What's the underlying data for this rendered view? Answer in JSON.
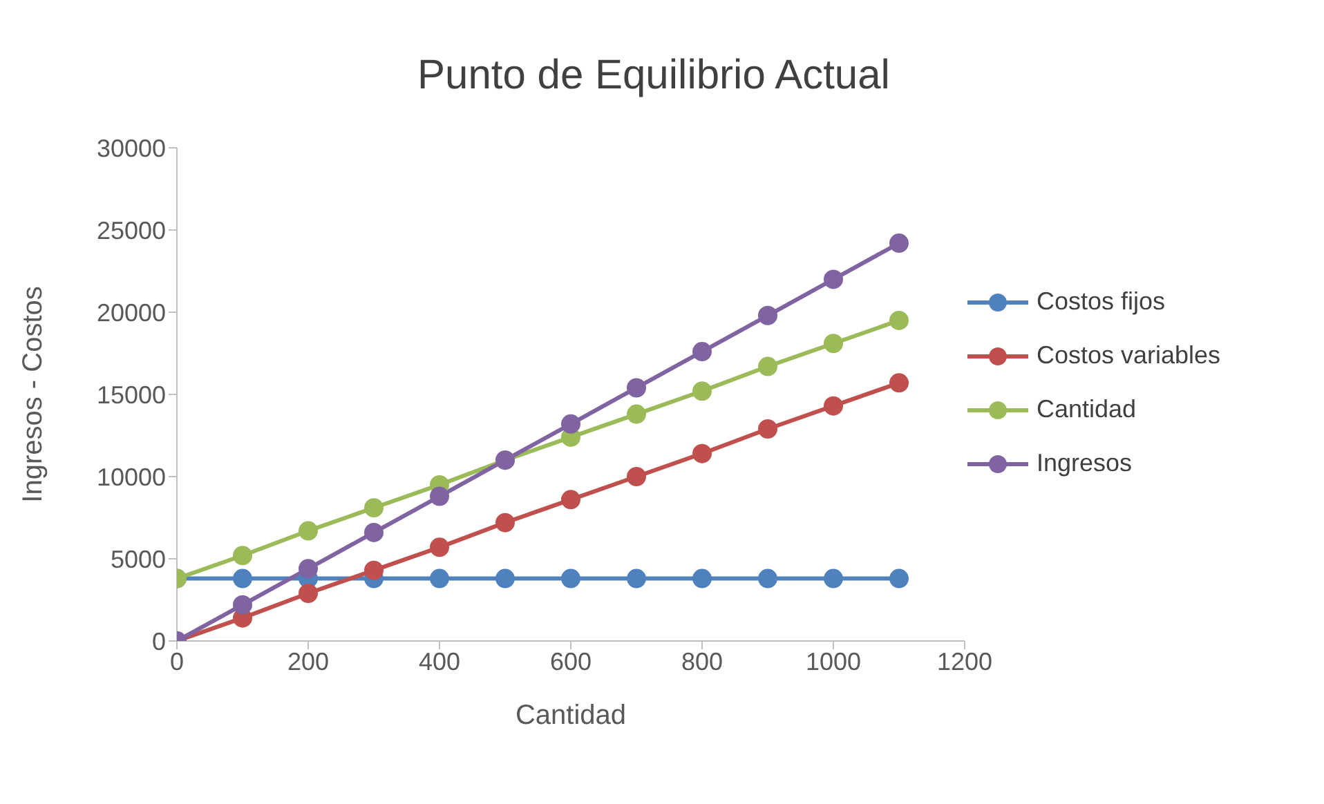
{
  "chart_data": {
    "type": "line",
    "title": "Punto de Equilibrio Actual",
    "xlabel": "Cantidad",
    "ylabel": "Ingresos - Costos",
    "x": [
      0,
      100,
      200,
      300,
      400,
      500,
      600,
      700,
      800,
      900,
      1000,
      1100
    ],
    "series": [
      {
        "name": "Costos fijos",
        "color": "#4f81bd",
        "values": [
          3800,
          3800,
          3800,
          3800,
          3800,
          3800,
          3800,
          3800,
          3800,
          3800,
          3800,
          3800
        ]
      },
      {
        "name": "Costos variables",
        "color": "#c0504d",
        "values": [
          0,
          1400,
          2900,
          4300,
          5700,
          7200,
          8600,
          10000,
          11400,
          12900,
          14300,
          15700
        ]
      },
      {
        "name": "Cantidad",
        "color": "#9bbb59",
        "values": [
          3800,
          5200,
          6700,
          8100,
          9500,
          11000,
          12400,
          13800,
          15200,
          16700,
          18100,
          19500
        ]
      },
      {
        "name": "Ingresos",
        "color": "#8064a2",
        "values": [
          0,
          2200,
          4400,
          6600,
          8800,
          11000,
          13200,
          15400,
          17600,
          19800,
          22000,
          24200
        ]
      }
    ],
    "xlim": [
      0,
      1200
    ],
    "xticks": [
      0,
      200,
      400,
      600,
      800,
      1000,
      1200
    ],
    "ylim": [
      0,
      30000
    ],
    "yticks": [
      0,
      5000,
      10000,
      15000,
      20000,
      25000,
      30000
    ],
    "grid": false,
    "legend": "right",
    "marker": "circle",
    "line_style": "solid"
  }
}
